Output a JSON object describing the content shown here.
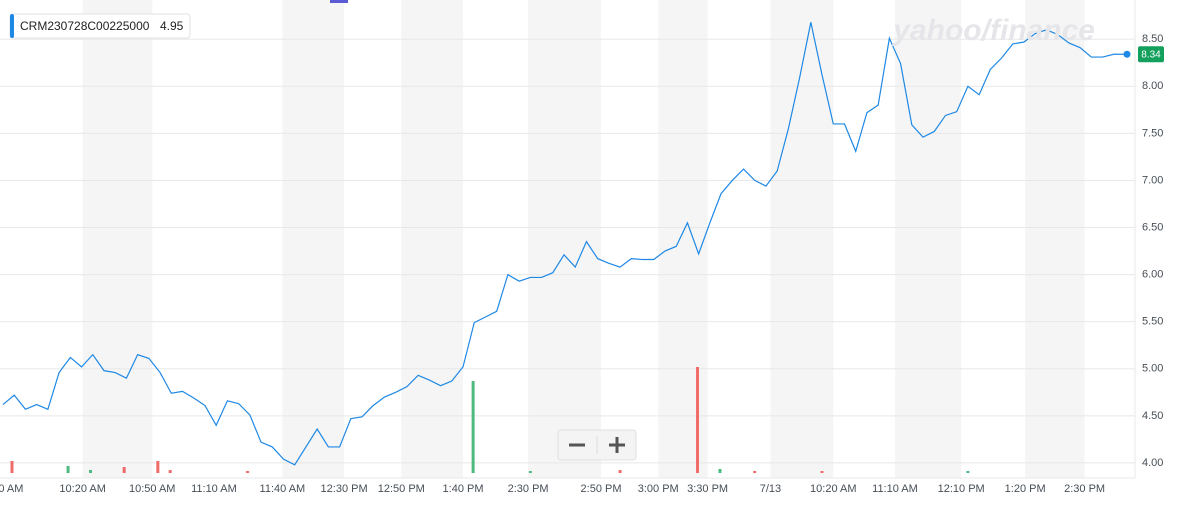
{
  "chart_data": {
    "type": "line",
    "watermark": "yahoo/finance",
    "legend_value": 4.95,
    "series": [
      {
        "name": "CRM230728C00225000",
        "color": "#1e88e5",
        "values": [
          4.62,
          4.72,
          4.57,
          4.62,
          4.57,
          4.96,
          5.12,
          5.02,
          5.15,
          4.98,
          4.96,
          4.9,
          5.15,
          5.11,
          4.96,
          4.74,
          4.76,
          4.69,
          4.61,
          4.4,
          4.66,
          4.63,
          4.51,
          4.22,
          4.17,
          4.04,
          3.98,
          4.17,
          4.36,
          4.17,
          4.17,
          4.47,
          4.49,
          4.61,
          4.7,
          4.75,
          4.81,
          4.93,
          4.88,
          4.82,
          4.87,
          5.02,
          5.49,
          5.55,
          5.61,
          6.0,
          5.93,
          5.97,
          5.97,
          6.02,
          6.21,
          6.08,
          6.35,
          6.17,
          6.12,
          6.08,
          6.17,
          6.16,
          6.16,
          6.25,
          6.3,
          6.55,
          6.22,
          6.55,
          6.86,
          7.0,
          7.12,
          7.0,
          6.94,
          7.1,
          7.55,
          8.09,
          8.68,
          8.12,
          7.6,
          7.6,
          7.31,
          7.72,
          7.8,
          8.51,
          8.24,
          7.59,
          7.46,
          7.52,
          7.69,
          7.73,
          8.0,
          7.91,
          8.18,
          8.3,
          8.45,
          8.47,
          8.56,
          8.6,
          8.55,
          8.46,
          8.41,
          8.31,
          8.31,
          8.34,
          8.34
        ]
      }
    ],
    "volume": {
      "x": [
        0.8,
        5.8,
        7.8,
        10.8,
        13.8,
        14.9,
        21.8,
        41.9,
        47.0,
        55.0,
        61.9,
        63.9,
        67.0,
        73.0,
        86.0
      ],
      "values": [
        12,
        7,
        3,
        6,
        12,
        3,
        2,
        92,
        2,
        3,
        106,
        4,
        2,
        2,
        2
      ],
      "colors": [
        "#f26b6b",
        "#4cbb7f",
        "#4cbb7f",
        "#f26b6b",
        "#f26b6b",
        "#f26b6b",
        "#f26b6b",
        "#4cbb7f",
        "#4cbb7f",
        "#f26b6b",
        "#f26b6b",
        "#4cbb7f",
        "#f26b6b",
        "#f26b6b",
        "#4cbb7f"
      ],
      "ylim": [
        0,
        110
      ]
    },
    "xlim": [
      0,
      100
    ],
    "xticks": [
      {
        "value": 0.7,
        "label": "0 AM"
      },
      {
        "value": 7.1,
        "label": "10:20 AM"
      },
      {
        "value": 13.3,
        "label": "10:50 AM"
      },
      {
        "value": 18.8,
        "label": "11:10 AM"
      },
      {
        "value": 24.9,
        "label": "11:40 AM"
      },
      {
        "value": 30.4,
        "label": "12:30 PM"
      },
      {
        "value": 35.5,
        "label": "12:50 PM"
      },
      {
        "value": 41.0,
        "label": "1:40 PM"
      },
      {
        "value": 46.8,
        "label": "2:30 PM"
      },
      {
        "value": 53.3,
        "label": "2:50 PM"
      },
      {
        "value": 58.4,
        "label": "3:00 PM"
      },
      {
        "value": 62.8,
        "label": "3:30 PM"
      },
      {
        "value": 68.4,
        "label": "7/13"
      },
      {
        "value": 74.0,
        "label": "10:20 AM"
      },
      {
        "value": 79.5,
        "label": "11:10 AM"
      },
      {
        "value": 85.4,
        "label": "12:10 PM"
      },
      {
        "value": 91.1,
        "label": "1:20 PM"
      },
      {
        "value": 96.4,
        "label": "2:30 PM"
      }
    ],
    "ylim": [
      3.84,
      8.81
    ],
    "yticks": [
      {
        "value": 4,
        "label": "4.00"
      },
      {
        "value": 4.5,
        "label": "4.50"
      },
      {
        "value": 5,
        "label": "5.00"
      },
      {
        "value": 5.5,
        "label": "5.50"
      },
      {
        "value": 6,
        "label": "6.00"
      },
      {
        "value": 6.5,
        "label": "6.50"
      },
      {
        "value": 7,
        "label": "7.00"
      },
      {
        "value": 7.5,
        "label": "7.50"
      },
      {
        "value": 8,
        "label": "8.00"
      },
      {
        "value": 8.5,
        "label": "8.50"
      }
    ],
    "grid": true
  }
}
